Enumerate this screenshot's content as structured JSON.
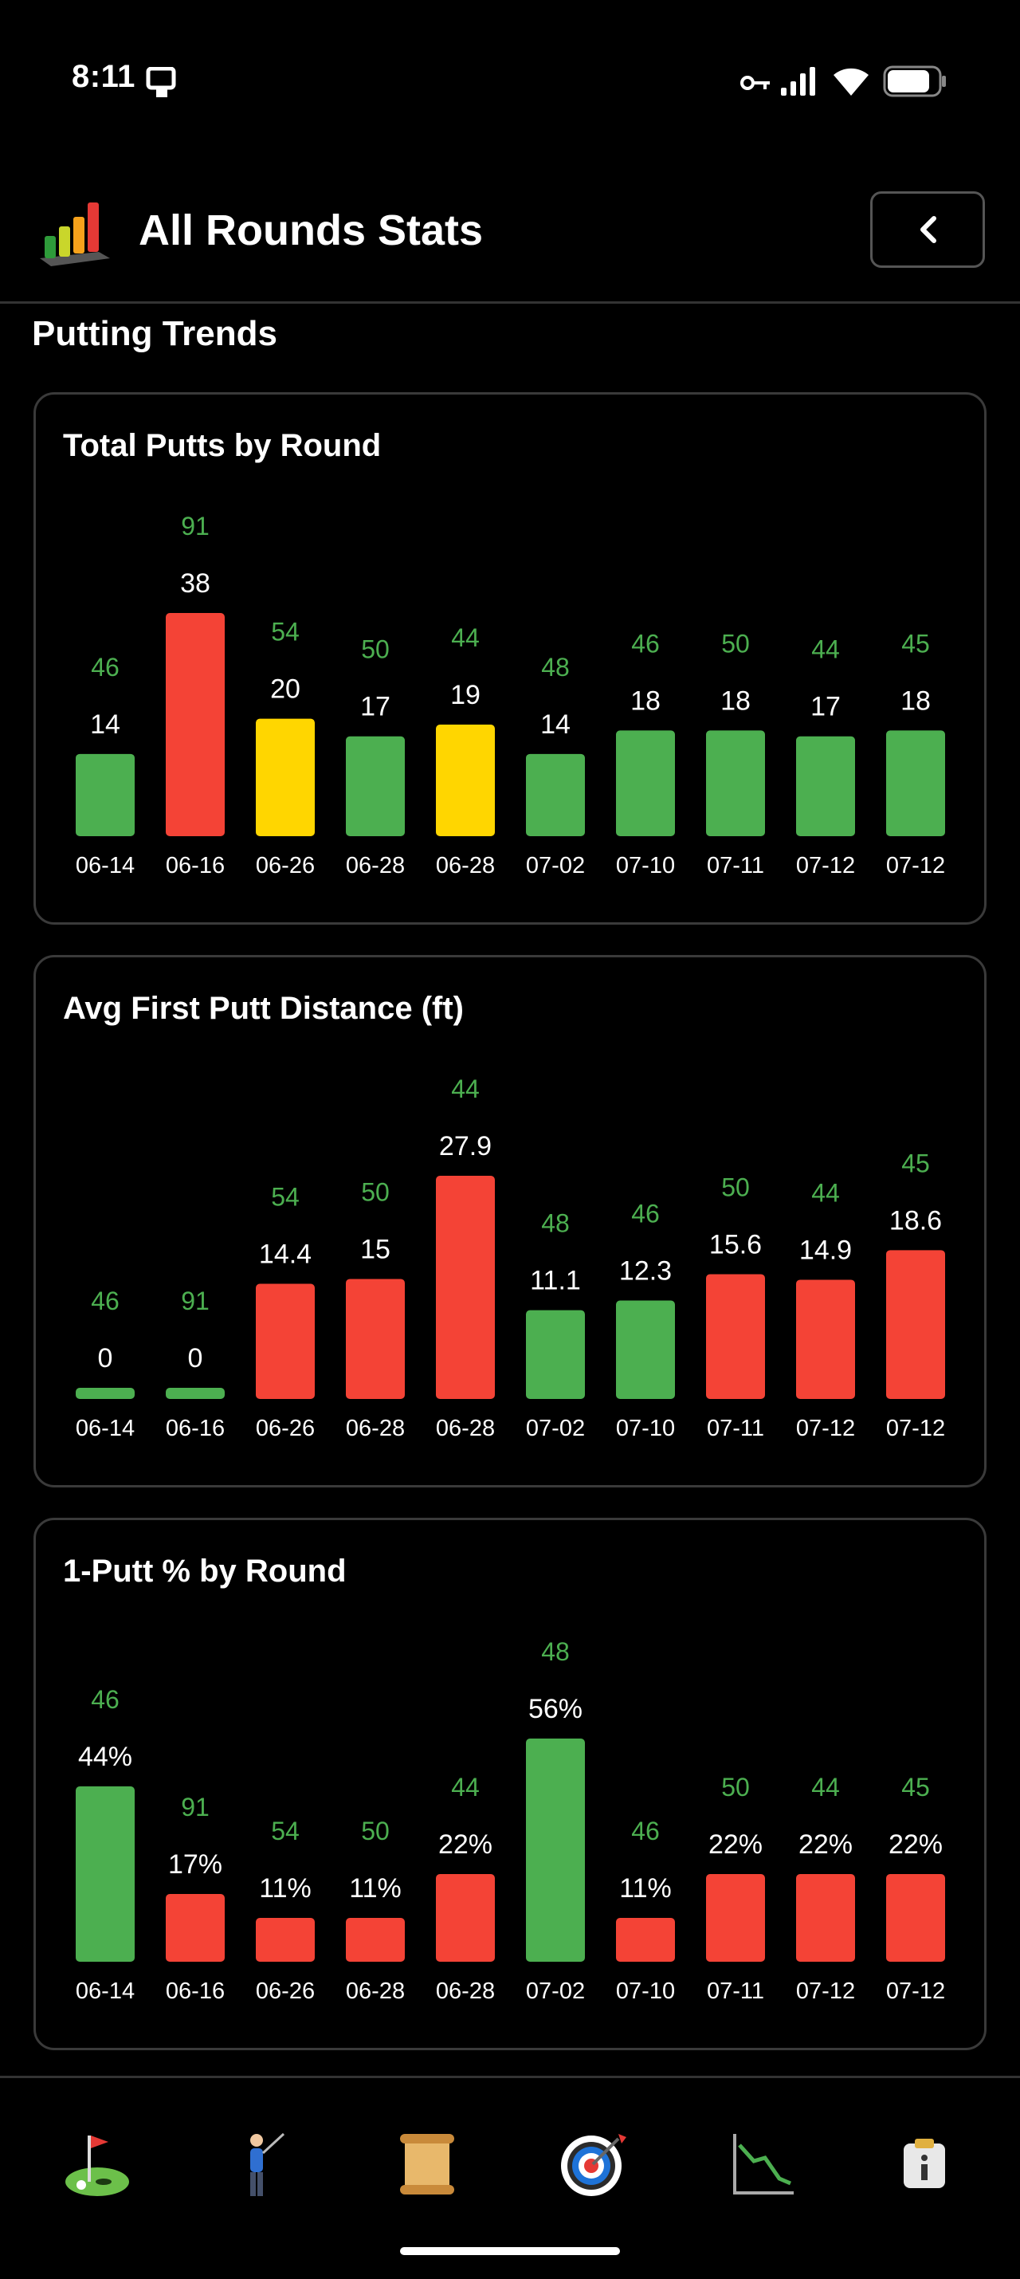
{
  "status_bar": {
    "time": "8:11"
  },
  "header": {
    "title": "All Rounds Stats",
    "back_icon": "chevron-left-icon",
    "logo_icon": "bar-chart-logo-icon"
  },
  "section": {
    "title": "Putting Trends"
  },
  "colors": {
    "green": "#4caf50",
    "red": "#f44336",
    "yellow": "#ffd600",
    "label_green": "#4caf50"
  },
  "chart_data": [
    {
      "type": "bar",
      "title": "Total Putts by Round",
      "categories": [
        "06-14",
        "06-16",
        "06-26",
        "06-28",
        "06-28",
        "07-02",
        "07-10",
        "07-11",
        "07-12",
        "07-12"
      ],
      "values": [
        14,
        38,
        20,
        17,
        19,
        14,
        18,
        18,
        17,
        18
      ],
      "labels": [
        "14",
        "38",
        "20",
        "17",
        "19",
        "14",
        "18",
        "18",
        "17",
        "18"
      ],
      "scores": [
        "46",
        "91",
        "54",
        "50",
        "44",
        "48",
        "46",
        "50",
        "44",
        "45"
      ],
      "bar_colors": [
        "green",
        "red",
        "yellow",
        "green",
        "yellow",
        "green",
        "green",
        "green",
        "green",
        "green"
      ],
      "ylim": [
        0,
        38
      ]
    },
    {
      "type": "bar",
      "title": "Avg First Putt Distance (ft)",
      "categories": [
        "06-14",
        "06-16",
        "06-26",
        "06-28",
        "06-28",
        "07-02",
        "07-10",
        "07-11",
        "07-12",
        "07-12"
      ],
      "values": [
        0,
        0,
        14.4,
        15,
        27.9,
        11.1,
        12.3,
        15.6,
        14.9,
        18.6
      ],
      "labels": [
        "0",
        "0",
        "14.4",
        "15",
        "27.9",
        "11.1",
        "12.3",
        "15.6",
        "14.9",
        "18.6"
      ],
      "scores": [
        "46",
        "91",
        "54",
        "50",
        "44",
        "48",
        "46",
        "50",
        "44",
        "45"
      ],
      "bar_colors": [
        "green",
        "green",
        "red",
        "red",
        "red",
        "green",
        "green",
        "red",
        "red",
        "red"
      ],
      "ylim": [
        0,
        27.9
      ]
    },
    {
      "type": "bar",
      "title": "1-Putt % by Round",
      "categories": [
        "06-14",
        "06-16",
        "06-26",
        "06-28",
        "06-28",
        "07-02",
        "07-10",
        "07-11",
        "07-12",
        "07-12"
      ],
      "values": [
        44,
        17,
        11,
        11,
        22,
        56,
        11,
        22,
        22,
        22
      ],
      "labels": [
        "44%",
        "17%",
        "11%",
        "11%",
        "22%",
        "56%",
        "11%",
        "22%",
        "22%",
        "22%"
      ],
      "scores": [
        "46",
        "91",
        "54",
        "50",
        "44",
        "48",
        "46",
        "50",
        "44",
        "45"
      ],
      "bar_colors": [
        "green",
        "red",
        "red",
        "red",
        "red",
        "green",
        "red",
        "red",
        "red",
        "red"
      ],
      "ylim": [
        0,
        56
      ]
    }
  ],
  "tab_bar": {
    "items": [
      {
        "icon": "golf-hole-icon"
      },
      {
        "icon": "golfer-icon"
      },
      {
        "icon": "scroll-icon"
      },
      {
        "icon": "target-icon"
      },
      {
        "icon": "trend-chart-icon"
      },
      {
        "icon": "info-icon"
      }
    ]
  }
}
